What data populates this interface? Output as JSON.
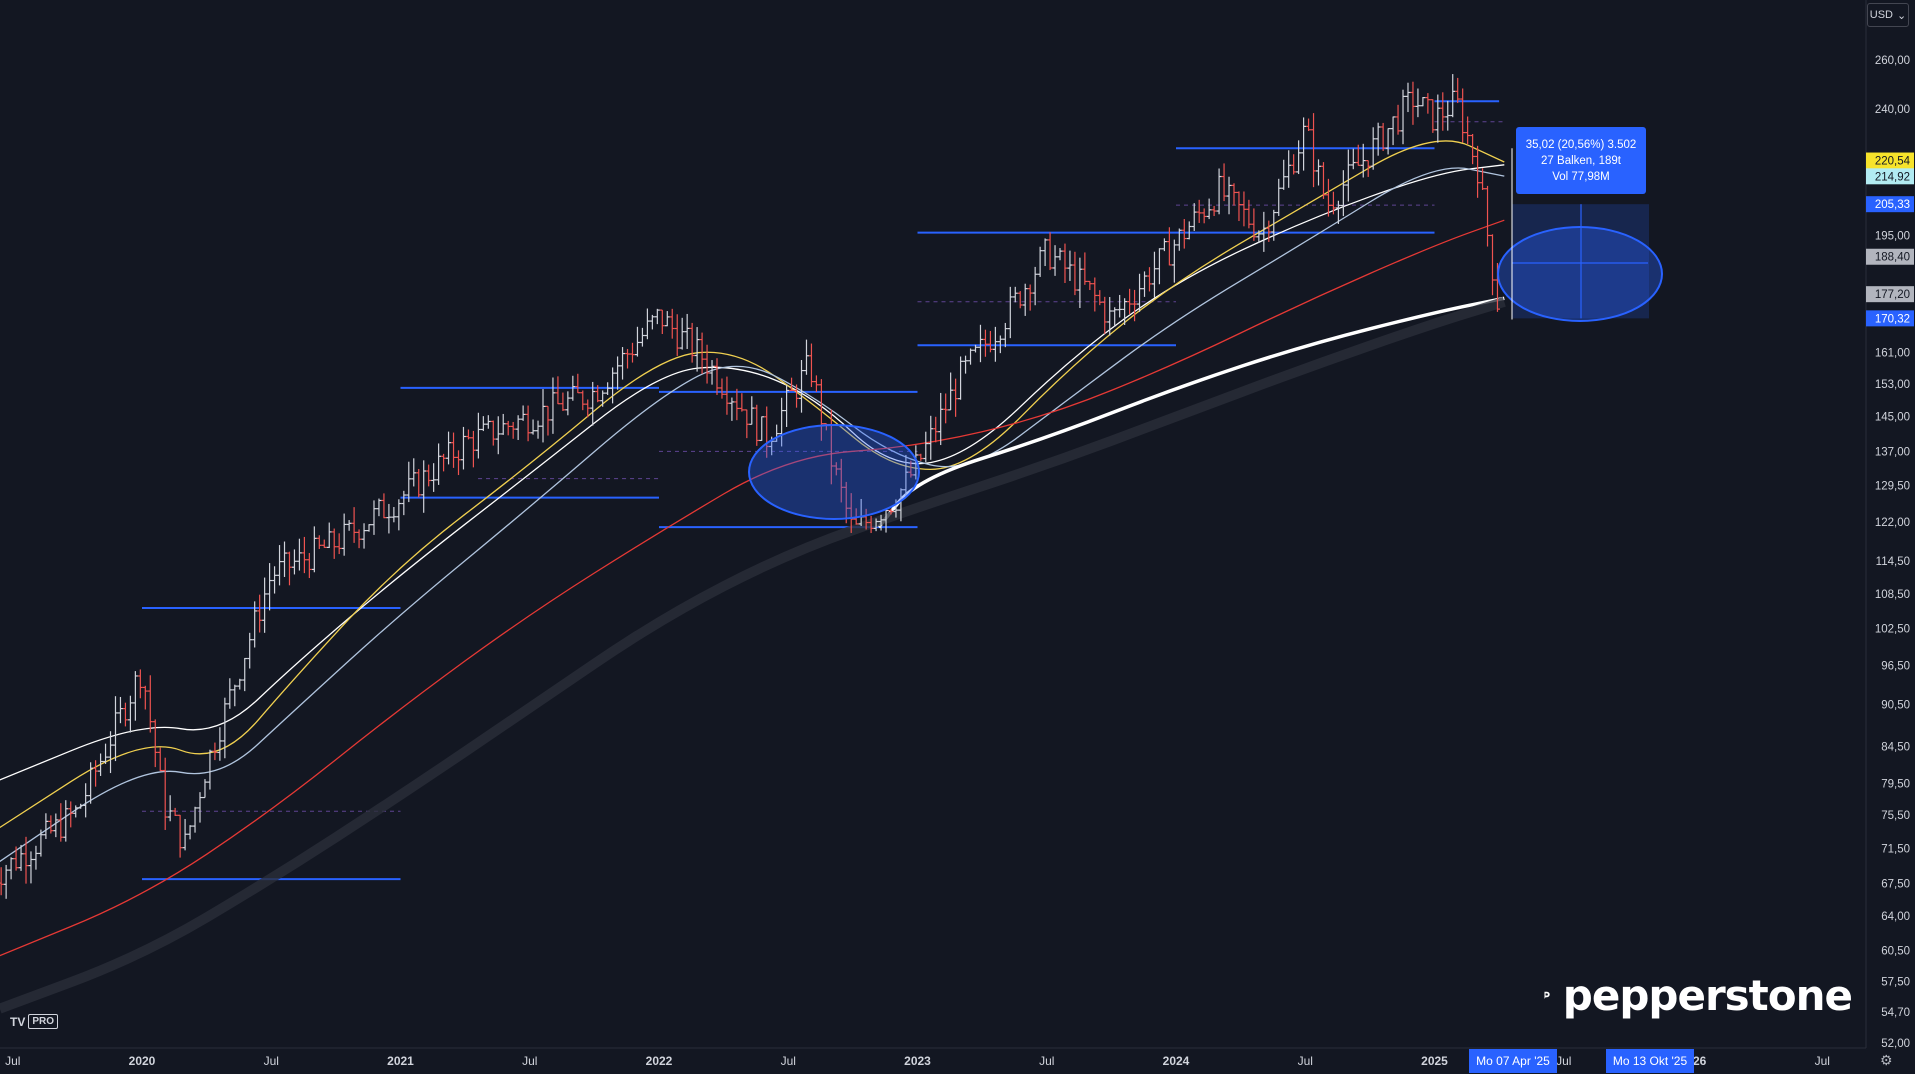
{
  "toolbar": {
    "currency": "USD",
    "chevron_icon": "chevron-down-icon"
  },
  "chart_data": {
    "type": "candlestick",
    "title": "",
    "xlabel": "",
    "ylabel": "",
    "scale": "log",
    "ylim": [
      50,
      270
    ],
    "y_ticks": [
      "260,00",
      "240,00",
      "195,00",
      "161,00",
      "153,00",
      "145,00",
      "137,00",
      "129,50",
      "122,00",
      "114,50",
      "108,50",
      "102,50",
      "96,50",
      "90,50",
      "84,50",
      "79,50",
      "75,50",
      "71,50",
      "67,50",
      "64,00",
      "60,50",
      "57,50",
      "54,70",
      "52,00"
    ],
    "y_tick_values": [
      260,
      240,
      195,
      161,
      153,
      145,
      137,
      129.5,
      122,
      114.5,
      108.5,
      102.5,
      96.5,
      90.5,
      84.5,
      79.5,
      75.5,
      71.5,
      67.5,
      64,
      60.5,
      57.5,
      54.7,
      52
    ],
    "x_ticks": [
      "Jul",
      "2020",
      "Jul",
      "2021",
      "Jul",
      "2022",
      "Jul",
      "2023",
      "Jul",
      "2024",
      "Jul",
      "2025",
      "Jul",
      "2026",
      "Jul"
    ],
    "x_tick_dates": [
      "2019-07",
      "2020-01",
      "2020-07",
      "2021-01",
      "2021-07",
      "2022-01",
      "2022-07",
      "2023-01",
      "2023-07",
      "2024-01",
      "2024-07",
      "2025-01",
      "2025-07",
      "2026-01",
      "2026-07"
    ],
    "price_path": [
      [
        "2019-06",
        68
      ],
      [
        "2019-10",
        76
      ],
      [
        "2020-01",
        96
      ],
      [
        "2020-02",
        77
      ],
      [
        "2020-03",
        72
      ],
      [
        "2020-04",
        82
      ],
      [
        "2020-07",
        112
      ],
      [
        "2020-10",
        118
      ],
      [
        "2021-01",
        127
      ],
      [
        "2021-04",
        139
      ],
      [
        "2021-07",
        145
      ],
      [
        "2021-10",
        151
      ],
      [
        "2022-01",
        171
      ],
      [
        "2022-03",
        160
      ],
      [
        "2022-06",
        140
      ],
      [
        "2022-08",
        158
      ],
      [
        "2022-09",
        135
      ],
      [
        "2022-10",
        120
      ],
      [
        "2022-12",
        127
      ],
      [
        "2023-01",
        134
      ],
      [
        "2023-03",
        155
      ],
      [
        "2023-05",
        170
      ],
      [
        "2023-07",
        190
      ],
      [
        "2023-09",
        178
      ],
      [
        "2023-10",
        170
      ],
      [
        "2024-01",
        193
      ],
      [
        "2024-03",
        210
      ],
      [
        "2024-05",
        196
      ],
      [
        "2024-07",
        232
      ],
      [
        "2024-08",
        205
      ],
      [
        "2024-10",
        224
      ],
      [
        "2024-12",
        244
      ],
      [
        "2025-01",
        236
      ],
      [
        "2025-02",
        243
      ],
      [
        "2025-03",
        218
      ],
      [
        "2025-04",
        172
      ]
    ],
    "series": [
      {
        "color": "#ffffff",
        "values": [
          [
            2019.45,
            80
          ],
          [
            2020.0,
            88
          ],
          [
            2020.3,
            86
          ],
          [
            2020.6,
            97
          ],
          [
            2021.0,
            112
          ],
          [
            2021.5,
            132
          ],
          [
            2022.0,
            156
          ],
          [
            2022.3,
            158
          ],
          [
            2022.6,
            150
          ],
          [
            2022.9,
            133
          ],
          [
            2023.2,
            136
          ],
          [
            2023.6,
            160
          ],
          [
            2024.0,
            181
          ],
          [
            2024.5,
            200
          ],
          [
            2025.0,
            216
          ],
          [
            2025.27,
            219
          ]
        ]
      },
      {
        "color": "#f0d050",
        "values": [
          [
            2019.45,
            74
          ],
          [
            2020.0,
            86
          ],
          [
            2020.3,
            82
          ],
          [
            2020.6,
            95
          ],
          [
            2021.0,
            114
          ],
          [
            2021.5,
            134
          ],
          [
            2022.0,
            160
          ],
          [
            2022.3,
            162
          ],
          [
            2022.6,
            148
          ],
          [
            2022.9,
            133
          ],
          [
            2023.2,
            133
          ],
          [
            2023.6,
            158
          ],
          [
            2024.0,
            181
          ],
          [
            2024.5,
            205
          ],
          [
            2025.0,
            232
          ],
          [
            2025.27,
            220
          ]
        ]
      },
      {
        "color": "#b0c4de",
        "values": [
          [
            2019.45,
            70
          ],
          [
            2020.0,
            82
          ],
          [
            2020.3,
            80
          ],
          [
            2020.6,
            90
          ],
          [
            2021.0,
            105
          ],
          [
            2021.5,
            125
          ],
          [
            2022.0,
            150
          ],
          [
            2022.3,
            160
          ],
          [
            2022.6,
            150
          ],
          [
            2022.9,
            136
          ],
          [
            2023.2,
            132
          ],
          [
            2023.6,
            150
          ],
          [
            2024.0,
            170
          ],
          [
            2024.5,
            193
          ],
          [
            2025.0,
            220
          ],
          [
            2025.27,
            215
          ]
        ]
      },
      {
        "color": "#e53935",
        "values": [
          [
            2019.45,
            60
          ],
          [
            2020.0,
            66
          ],
          [
            2020.5,
            76
          ],
          [
            2021.0,
            90
          ],
          [
            2021.5,
            105
          ],
          [
            2022.0,
            120
          ],
          [
            2022.5,
            136
          ],
          [
            2023.0,
            138
          ],
          [
            2023.5,
            145
          ],
          [
            2024.0,
            158
          ],
          [
            2024.5,
            175
          ],
          [
            2025.0,
            192
          ],
          [
            2025.27,
            200
          ]
        ]
      },
      {
        "color": "#ffffff",
        "values": [
          [
            2022.85,
            121
          ],
          [
            2023.0,
            131
          ],
          [
            2023.5,
            140
          ],
          [
            2024.0,
            152
          ],
          [
            2024.5,
            163
          ],
          [
            2025.0,
            172
          ],
          [
            2025.27,
            176
          ]
        ]
      },
      {
        "color": "#2a2e39",
        "values": [
          [
            2019.45,
            55
          ],
          [
            2020.0,
            60
          ],
          [
            2020.5,
            68
          ],
          [
            2021.0,
            78
          ],
          [
            2021.5,
            90
          ],
          [
            2022.0,
            104
          ],
          [
            2022.5,
            116
          ],
          [
            2023.0,
            125
          ],
          [
            2023.5,
            134
          ],
          [
            2024.0,
            145
          ],
          [
            2024.5,
            157
          ],
          [
            2025.0,
            169
          ],
          [
            2025.27,
            175
          ]
        ]
      }
    ],
    "horizontal_levels": [
      {
        "y": 68,
        "from": "2020-01",
        "to": "2021-01"
      },
      {
        "y": 106,
        "from": "2020-01",
        "to": "2021-01"
      },
      {
        "y": 127,
        "from": "2021-01",
        "to": "2022-01"
      },
      {
        "y": 152,
        "from": "2021-01",
        "to": "2022-01"
      },
      {
        "y": 121,
        "from": "2022-01",
        "to": "2023-01"
      },
      {
        "y": 151,
        "from": "2022-01",
        "to": "2023-01"
      },
      {
        "y": 163,
        "from": "2023-01",
        "to": "2024-01"
      },
      {
        "y": 196,
        "from": "2023-01",
        "to": "2025-01"
      },
      {
        "y": 225,
        "from": "2024-01",
        "to": "2025-01"
      },
      {
        "y": 243,
        "from": "2025-01",
        "to": "2025-04"
      }
    ],
    "price_labels": [
      {
        "text": "220,54",
        "y": 220.54,
        "bg": "#f7e32b",
        "fg": "#131722"
      },
      {
        "text": "214,92",
        "y": 214.92,
        "bg": "#b2ebf2",
        "fg": "#131722"
      },
      {
        "text": "205,33",
        "y": 205.33,
        "bg": "#2962ff",
        "fg": "#ffffff"
      },
      {
        "text": "188,40",
        "y": 188.4,
        "bg": "#b2b5be",
        "fg": "#131722"
      },
      {
        "text": "177,20",
        "y": 177.2,
        "bg": "#b2b5be",
        "fg": "#131722"
      },
      {
        "text": "170,32",
        "y": 170.32,
        "bg": "#2962ff",
        "fg": "#ffffff"
      }
    ],
    "measure": {
      "line1": "35,02 (20,56%) 3.502",
      "line2": "27 Balken, 189t",
      "line3": "Vol 77,98M"
    },
    "date_range": {
      "start": "Mo 07 Apr '25",
      "end": "Mo 13 Okt '25"
    }
  },
  "branding": {
    "logo_text": "pepperstone",
    "platform": "TV",
    "tier": "PRO"
  }
}
